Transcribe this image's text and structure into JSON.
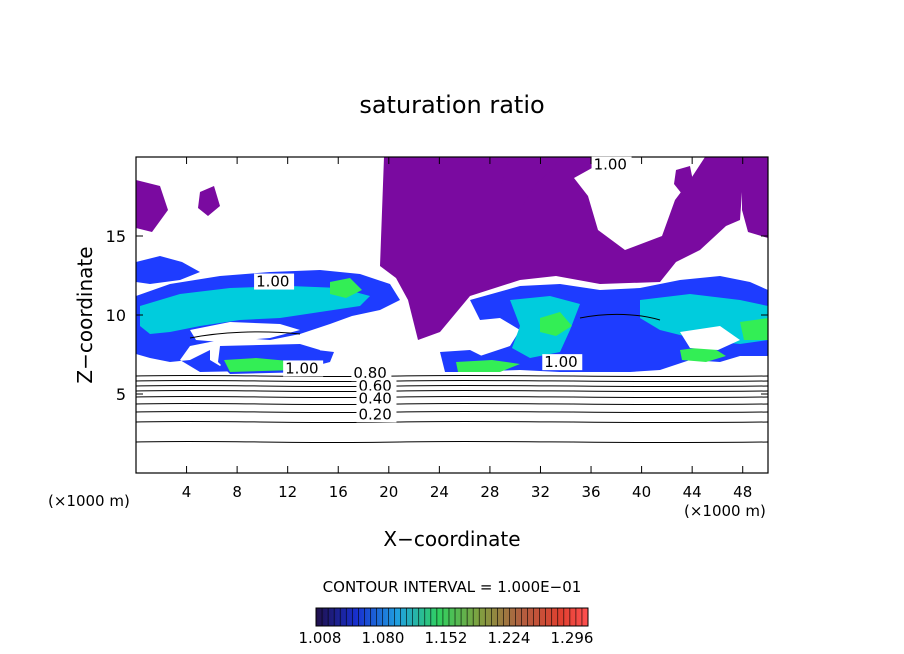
{
  "chart_data": {
    "type": "heatmap",
    "title": "saturation ratio",
    "xlabel": "X−coordinate",
    "ylabel": "Z−coordinate",
    "x_unit_label_left": "(×1000 m)",
    "x_unit_label_right": "(×1000 m)",
    "xlim": [
      0,
      50
    ],
    "ylim": [
      0,
      20
    ],
    "x_ticks": [
      4,
      8,
      12,
      16,
      20,
      24,
      28,
      32,
      36,
      40,
      44,
      48
    ],
    "y_ticks": [
      5,
      10,
      15
    ],
    "contour_interval_text": "CONTOUR INTERVAL = 1.000E−01",
    "contour_labels": [
      {
        "text": "1.00",
        "x": 9.5,
        "z": 11.8
      },
      {
        "text": "1.00",
        "x": 11.8,
        "z": 6.3
      },
      {
        "text": "1.00",
        "x": 32.3,
        "z": 6.7
      },
      {
        "text": "1.00",
        "x": 36.2,
        "z": 19.2
      },
      {
        "text": "0.80",
        "x": 17.2,
        "z": 6.0
      },
      {
        "text": "0.60",
        "x": 17.6,
        "z": 5.2
      },
      {
        "text": "0.40",
        "x": 17.6,
        "z": 4.4
      },
      {
        "text": "0.20",
        "x": 17.6,
        "z": 3.4
      }
    ],
    "colorbar": {
      "ticks": [
        "1.008",
        "1.080",
        "1.152",
        "1.224",
        "1.296"
      ]
    },
    "colors": {
      "low": "#7a0aa0",
      "mid_low": "#1e3cff",
      "mid": "#00ccdd",
      "high": "#33ee55"
    }
  }
}
